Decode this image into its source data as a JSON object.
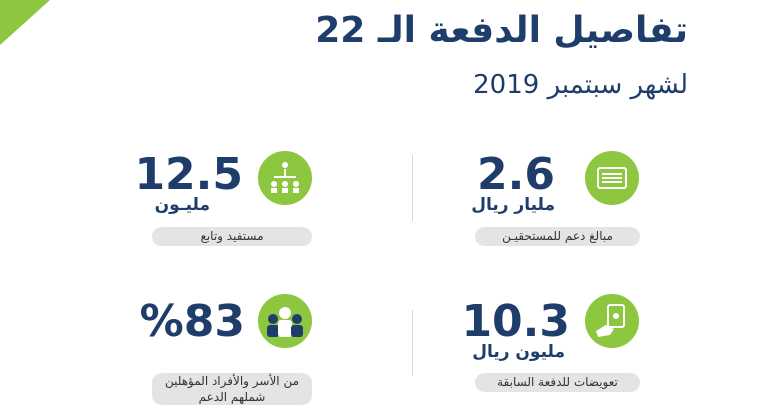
{
  "header": {
    "title": "تفاصيل الدفعة الـ 22",
    "subtitle": "لشهر سبتمبر 2019"
  },
  "stats": [
    {
      "value": "2.6",
      "unit": "مليار ريال",
      "caption": "مبالغ دعم للمستحقيـن"
    },
    {
      "value": "12.5",
      "unit": "مليـون",
      "caption": "مستفيد وتابع"
    },
    {
      "value": "10.3",
      "unit": "مليون ريال",
      "caption": "تعويضات للدفعة السابقة"
    },
    {
      "value": "%83",
      "caption": "من الأسر والأفراد المؤهلين شملهم الدعم"
    }
  ]
}
